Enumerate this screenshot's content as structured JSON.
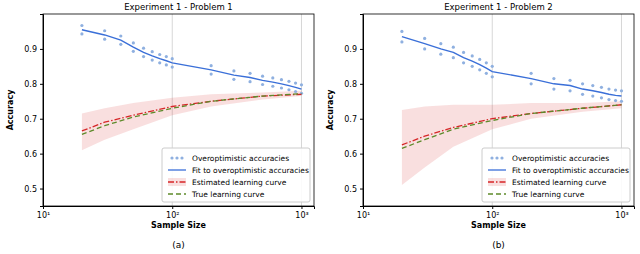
{
  "chart_data": [
    {
      "type": "line",
      "title": "Experiment 1 - Problem 1",
      "x_label": "Sample Size",
      "y_label": "Accuracy",
      "caption": "(a)",
      "log": "x",
      "grid": true,
      "legend": "lower right",
      "xlim": [
        10,
        1250
      ],
      "ylim": [
        0.45,
        1.0
      ],
      "xticks": [
        {
          "value": 10,
          "label": "10¹"
        },
        {
          "value": 100,
          "label": "10²"
        },
        {
          "value": 1000,
          "label": "10³"
        }
      ],
      "yticks": [
        0.5,
        0.6,
        0.7,
        0.8,
        0.9
      ],
      "series": [
        {
          "name": "Overoptimistic accuracies",
          "type": "scatter",
          "marker": "circle",
          "color": "#8fb0e0",
          "x": [
            20,
            20,
            30,
            30,
            40,
            40,
            50,
            50,
            60,
            60,
            70,
            70,
            80,
            80,
            90,
            90,
            100,
            100,
            200,
            200,
            300,
            300,
            400,
            400,
            500,
            500,
            600,
            600,
            700,
            700,
            800,
            800,
            900,
            900,
            1000,
            1000
          ],
          "values": [
            0.967,
            0.943,
            0.952,
            0.928,
            0.937,
            0.913,
            0.917,
            0.893,
            0.902,
            0.878,
            0.892,
            0.868,
            0.884,
            0.86,
            0.878,
            0.854,
            0.872,
            0.848,
            0.852,
            0.828,
            0.837,
            0.813,
            0.83,
            0.806,
            0.822,
            0.798,
            0.817,
            0.793,
            0.812,
            0.788,
            0.807,
            0.783,
            0.802,
            0.778,
            0.797,
            0.773
          ]
        },
        {
          "name": "Fit to overoptimistic accuracies",
          "type": "line",
          "line_style": "solid",
          "color": "#3a6fd8",
          "x": [
            20,
            30,
            40,
            50,
            60,
            70,
            80,
            90,
            100,
            200,
            300,
            400,
            500,
            600,
            700,
            800,
            900,
            1000
          ],
          "values": [
            0.955,
            0.94,
            0.925,
            0.905,
            0.89,
            0.88,
            0.872,
            0.866,
            0.86,
            0.84,
            0.825,
            0.818,
            0.81,
            0.805,
            0.8,
            0.795,
            0.79,
            0.785
          ]
        },
        {
          "name": "Estimated learning curve",
          "type": "line",
          "line_style": "dashdot",
          "color": "#d62728",
          "x": [
            20,
            30,
            50,
            100,
            200,
            500,
            1000
          ],
          "values": [
            0.665,
            0.69,
            0.71,
            0.735,
            0.75,
            0.765,
            0.77
          ],
          "lower": [
            0.61,
            0.64,
            0.67,
            0.71,
            0.735,
            0.755,
            0.765
          ],
          "upper": [
            0.715,
            0.73,
            0.745,
            0.76,
            0.77,
            0.775,
            0.78
          ]
        },
        {
          "name": "True learning curve",
          "type": "line",
          "line_style": "dashed",
          "color": "#5d8a2a",
          "x": [
            20,
            30,
            50,
            100,
            200,
            500,
            1000
          ],
          "values": [
            0.655,
            0.68,
            0.705,
            0.73,
            0.75,
            0.765,
            0.772
          ]
        }
      ]
    },
    {
      "type": "line",
      "title": "Experiment 1 - Problem 2",
      "x_label": "Sample Size",
      "y_label": "Accuracy",
      "caption": "(b)",
      "log": "x",
      "grid": true,
      "legend": "lower right",
      "xlim": [
        10,
        1250
      ],
      "ylim": [
        0.45,
        1.0
      ],
      "xticks": [
        {
          "value": 10,
          "label": "10¹"
        },
        {
          "value": 100,
          "label": "10²"
        },
        {
          "value": 1000,
          "label": "10³"
        }
      ],
      "yticks": [
        0.5,
        0.6,
        0.7,
        0.8,
        0.9
      ],
      "series": [
        {
          "name": "Overoptimistic accuracies",
          "type": "scatter",
          "marker": "circle",
          "color": "#8fb0e0",
          "x": [
            20,
            20,
            30,
            30,
            40,
            40,
            50,
            50,
            60,
            60,
            70,
            70,
            80,
            80,
            90,
            90,
            100,
            100,
            200,
            200,
            300,
            300,
            400,
            400,
            500,
            500,
            600,
            600,
            700,
            700,
            800,
            800,
            900,
            900,
            1000,
            1000
          ],
          "values": [
            0.95,
            0.92,
            0.93,
            0.9,
            0.915,
            0.885,
            0.905,
            0.875,
            0.89,
            0.86,
            0.88,
            0.85,
            0.87,
            0.84,
            0.86,
            0.83,
            0.85,
            0.82,
            0.83,
            0.8,
            0.815,
            0.785,
            0.81,
            0.78,
            0.8,
            0.77,
            0.795,
            0.765,
            0.79,
            0.76,
            0.785,
            0.755,
            0.782,
            0.752,
            0.78,
            0.75
          ]
        },
        {
          "name": "Fit to overoptimistic accuracies",
          "type": "line",
          "line_style": "solid",
          "color": "#3a6fd8",
          "x": [
            20,
            30,
            40,
            50,
            60,
            70,
            80,
            90,
            100,
            200,
            300,
            400,
            500,
            600,
            700,
            800,
            900,
            1000
          ],
          "values": [
            0.935,
            0.915,
            0.9,
            0.89,
            0.875,
            0.865,
            0.855,
            0.845,
            0.835,
            0.815,
            0.8,
            0.795,
            0.785,
            0.78,
            0.775,
            0.77,
            0.767,
            0.765
          ]
        },
        {
          "name": "Estimated learning curve",
          "type": "line",
          "line_style": "dashdot",
          "color": "#d62728",
          "x": [
            20,
            30,
            50,
            100,
            200,
            500,
            1000
          ],
          "values": [
            0.625,
            0.65,
            0.675,
            0.7,
            0.715,
            0.73,
            0.74
          ],
          "lower": [
            0.51,
            0.56,
            0.62,
            0.67,
            0.7,
            0.72,
            0.73
          ],
          "upper": [
            0.725,
            0.735,
            0.74,
            0.74,
            0.745,
            0.745,
            0.75
          ]
        },
        {
          "name": "True learning curve",
          "type": "line",
          "line_style": "dashed",
          "color": "#5d8a2a",
          "x": [
            20,
            30,
            50,
            100,
            200,
            500,
            1000
          ],
          "values": [
            0.615,
            0.64,
            0.67,
            0.695,
            0.715,
            0.73,
            0.74
          ]
        }
      ]
    }
  ]
}
